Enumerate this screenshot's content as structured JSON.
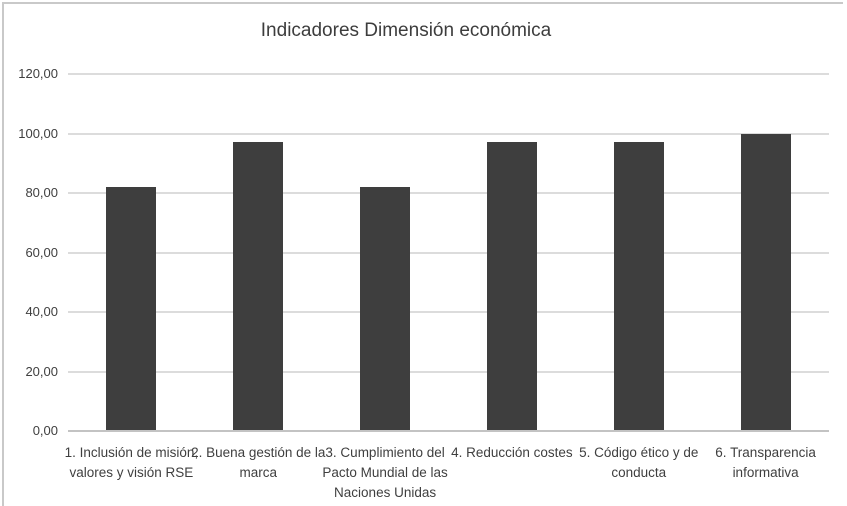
{
  "chart_title": "Indicadores Dimensión económica",
  "colors": {
    "bar": "#3e3e3e",
    "gridline": "#dcdcdc",
    "axis_line": "#c3c3c3",
    "text": "#3f3f3f",
    "title_text": "#3d3d3d",
    "frame_border": "#c9c9c9",
    "background": "#ffffff"
  },
  "chart_data": {
    "type": "bar",
    "title": "Indicadores Dimensión económica",
    "categories": [
      "1. Inclusión de misión, valores y visión RSE",
      "2. Buena gestión de la marca",
      "3. Cumplimiento del Pacto Mundial de las Naciones Unidas",
      "4. Reducción costes",
      "5. Código ético y de conducta",
      "6. Transparencia informativa"
    ],
    "values": [
      82,
      97,
      82,
      97,
      97,
      100
    ],
    "series_name": "",
    "xlabel": "",
    "ylabel": "",
    "ylim": [
      0,
      120
    ],
    "ytick_step": 20,
    "ytick_labels": [
      "0,00",
      "20,00",
      "40,00",
      "60,00",
      "80,00",
      "100,00",
      "120,00"
    ],
    "grid": true,
    "legend": false,
    "bar_color": "#3e3e3e"
  }
}
